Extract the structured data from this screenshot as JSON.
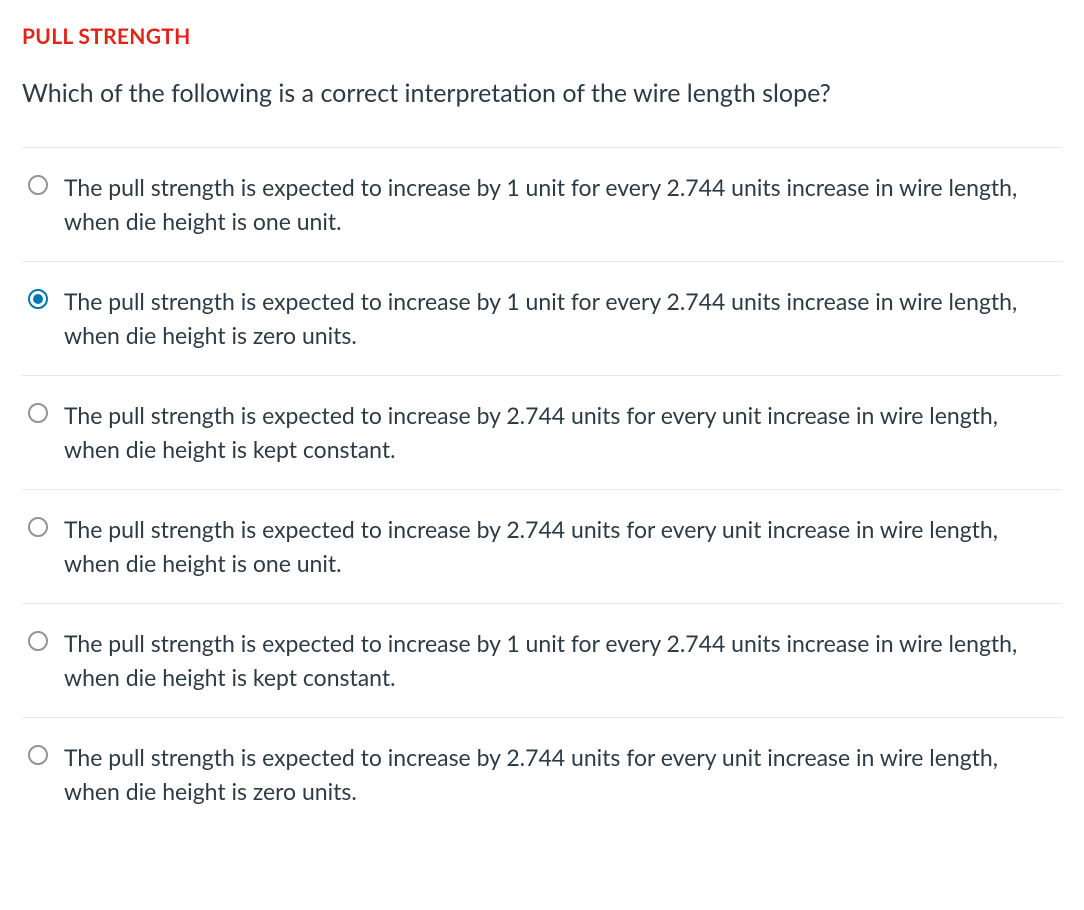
{
  "section_title": "PULL STRENGTH",
  "title_color": "#e2231a",
  "question": "Which of the following is a correct interpretation of the wire length slope?",
  "text_color": "#2d3b45",
  "border_color": "#e8e8e8",
  "radio_unselected_color": "#8f959b",
  "radio_selected_color": "#0374b5",
  "options": [
    {
      "text": "The pull strength is expected to increase by 1 unit for every 2.744 units increase in wire length, when die height is one unit.",
      "selected": false
    },
    {
      "text": "The pull strength is expected to increase by 1 unit for every 2.744 units increase in wire length, when die height is zero units.",
      "selected": true
    },
    {
      "text": "The pull strength is expected to increase by 2.744 units for every unit increase in wire length, when die height is kept constant.",
      "selected": false
    },
    {
      "text": "The pull strength is expected to increase by 2.744 units for every unit increase in wire length, when die height is one unit.",
      "selected": false
    },
    {
      "text": "The pull strength is expected to increase by 1 unit for every 2.744 units increase in wire length, when die height is kept constant.",
      "selected": false
    },
    {
      "text": "The pull strength is expected to increase by 2.744 units for every unit increase in wire length, when die height is zero units.",
      "selected": false
    }
  ]
}
